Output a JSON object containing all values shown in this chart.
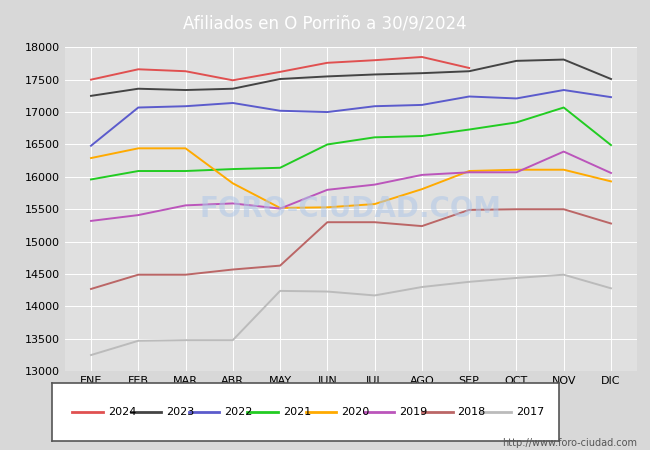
{
  "title": "Afiliados en O Porriño a 30/9/2024",
  "title_bg_color": "#4d86c8",
  "title_text_color": "#ffffff",
  "ylim": [
    13000,
    18000
  ],
  "yticks": [
    13000,
    13500,
    14000,
    14500,
    15000,
    15500,
    16000,
    16500,
    17000,
    17500,
    18000
  ],
  "months": [
    "ENE",
    "FEB",
    "MAR",
    "ABR",
    "MAY",
    "JUN",
    "JUL",
    "AGO",
    "SEP",
    "OCT",
    "NOV",
    "DIC"
  ],
  "watermark": "http://www.foro-ciudad.com",
  "series": {
    "2024": {
      "color": "#e05050",
      "data": [
        17500,
        17660,
        17630,
        17490,
        17620,
        17760,
        17800,
        17850,
        17680,
        null,
        null,
        null
      ]
    },
    "2023": {
      "color": "#444444",
      "data": [
        17250,
        17360,
        17340,
        17360,
        17510,
        17550,
        17580,
        17600,
        17630,
        17790,
        17810,
        17510
      ]
    },
    "2022": {
      "color": "#5b5bcc",
      "data": [
        16480,
        17070,
        17090,
        17140,
        17020,
        17000,
        17090,
        17110,
        17240,
        17210,
        17340,
        17230
      ]
    },
    "2021": {
      "color": "#22cc22",
      "data": [
        15960,
        16090,
        16090,
        16120,
        16140,
        16500,
        16610,
        16630,
        16730,
        16840,
        17070,
        16490
      ]
    },
    "2020": {
      "color": "#ffaa00",
      "data": [
        16290,
        16440,
        16440,
        15900,
        15520,
        15530,
        15580,
        15810,
        16090,
        16110,
        16110,
        15930
      ]
    },
    "2019": {
      "color": "#bb55bb",
      "data": [
        15320,
        15410,
        15560,
        15590,
        15510,
        15800,
        15880,
        16030,
        16070,
        16070,
        16390,
        16060
      ]
    },
    "2018": {
      "color": "#bb6666",
      "data": [
        14270,
        14490,
        14490,
        14570,
        14630,
        15300,
        15300,
        15240,
        15490,
        15500,
        15500,
        15280
      ]
    },
    "2017": {
      "color": "#bbbbbb",
      "data": [
        13250,
        13470,
        13480,
        13480,
        14240,
        14230,
        14170,
        14300,
        14380,
        14440,
        14490,
        14280
      ]
    }
  },
  "legend_order": [
    "2024",
    "2023",
    "2022",
    "2021",
    "2020",
    "2019",
    "2018",
    "2017"
  ],
  "fig_bg_color": "#d8d8d8",
  "plot_bg_color": "#e0e0e0",
  "left_bar_color": "#4d86c8",
  "grid_color": "#ffffff"
}
